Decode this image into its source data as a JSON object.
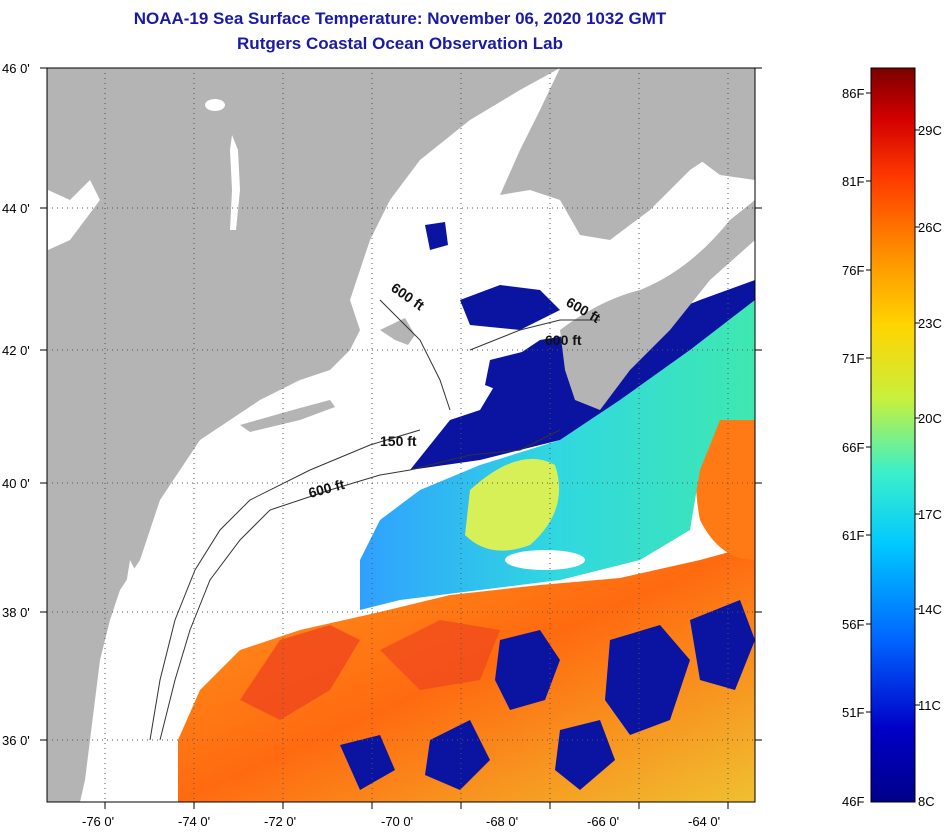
{
  "header": {
    "title": "NOAA-19 Sea Surface Temperature:  November 06, 2020 1032 GMT",
    "subtitle": "Rutgers Coastal Ocean Observation Lab"
  },
  "axes": {
    "lat_labels": [
      "46 0'",
      "44 0'",
      "42 0'",
      "40 0'",
      "38 0'",
      "36 0'"
    ],
    "lon_labels": [
      "-76 0'",
      "-74 0'",
      "-72 0'",
      "-70 0'",
      "-68 0'",
      "-66 0'",
      "-64 0'"
    ]
  },
  "contours": {
    "labels": [
      "600 ft",
      "600 ft",
      "600 ft",
      "150 ft",
      "600 ft"
    ]
  },
  "colorbar": {
    "fahrenheit": [
      "86F",
      "81F",
      "76F",
      "71F",
      "66F",
      "61F",
      "56F",
      "51F",
      "46F"
    ],
    "celsius": [
      "29C",
      "26C",
      "23C",
      "20C",
      "17C",
      "14C",
      "11C",
      "8C"
    ],
    "colors": [
      "#7a0000",
      "#d40000",
      "#ff3a00",
      "#ff8c00",
      "#ffd400",
      "#c8f03c",
      "#3cf0c8",
      "#00c8ff",
      "#0064ff",
      "#0000c8",
      "#00008a"
    ]
  },
  "map_colors": {
    "land": "#b4b4b4",
    "no_data": "#ffffff",
    "cold": "#0a14a0",
    "cool": "#2a8cff",
    "cyan": "#22d8e8",
    "green": "#9cec5a",
    "yellow": "#f0e846",
    "orange": "#ff8c1a",
    "red": "#f04a1e"
  }
}
